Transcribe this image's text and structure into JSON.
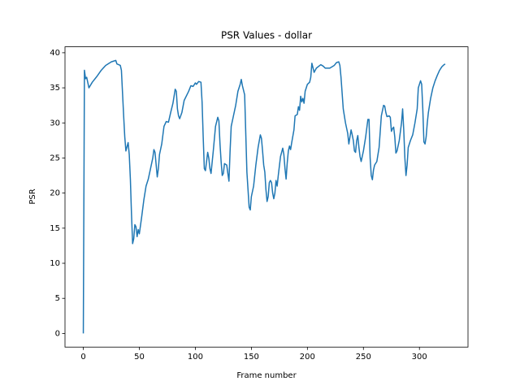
{
  "chart_data": {
    "type": "line",
    "title": "PSR Values - dollar",
    "x_label": "Frame number",
    "y_label": "PSR",
    "color": "#1f77b4",
    "x": [
      0,
      1,
      2,
      3,
      5,
      8,
      12,
      16,
      20,
      25,
      29,
      30,
      33,
      34,
      36,
      37,
      38,
      40,
      41,
      42,
      43,
      44,
      45,
      46,
      47,
      48,
      49,
      50,
      52,
      54,
      56,
      58,
      60,
      62,
      63,
      64,
      66,
      67,
      68,
      70,
      72,
      74,
      76,
      78,
      80,
      82,
      83,
      84,
      85,
      86,
      88,
      90,
      94,
      96,
      98,
      100,
      101,
      103,
      105,
      106,
      107,
      108,
      109,
      111,
      112,
      113,
      114,
      116,
      118,
      120,
      121,
      122,
      123,
      124,
      125,
      126,
      128,
      129,
      130,
      131,
      132,
      134,
      136,
      138,
      140,
      141,
      142,
      144,
      146,
      147,
      148,
      149,
      150,
      152,
      154,
      156,
      158,
      159,
      160,
      161,
      162,
      163,
      164,
      165,
      166,
      167,
      168,
      169,
      170,
      171,
      172,
      173,
      174,
      176,
      178,
      179,
      180,
      181,
      182,
      183,
      184,
      185,
      186,
      188,
      189,
      191,
      192,
      193,
      194,
      195,
      196,
      197,
      198,
      200,
      202,
      203,
      204,
      206,
      208,
      212,
      214,
      216,
      220,
      224,
      226,
      228,
      229,
      230,
      232,
      234,
      236,
      237,
      238,
      239,
      240,
      241,
      242,
      243,
      244,
      245,
      246,
      247,
      248,
      250,
      252,
      254,
      255,
      256,
      257,
      258,
      259,
      260,
      262,
      264,
      266,
      268,
      269,
      270,
      271,
      273,
      274,
      275,
      276,
      277,
      278,
      279,
      280,
      282,
      284,
      285,
      286,
      287,
      288,
      289,
      290,
      292,
      294,
      296,
      298,
      299,
      301,
      302,
      303,
      304,
      305,
      306,
      307,
      308,
      310,
      312,
      314,
      316,
      318,
      320,
      322,
      323
    ],
    "values": [
      0,
      37.5,
      36.3,
      36.5,
      35,
      35.8,
      36.6,
      37.5,
      38.2,
      38.7,
      38.9,
      38.4,
      38.2,
      37.5,
      31,
      28,
      26,
      27.2,
      25.5,
      22,
      17,
      12.8,
      13.5,
      15.5,
      15.2,
      13.8,
      14.8,
      14.2,
      16.5,
      19,
      21,
      22,
      23.5,
      25,
      26.2,
      25.8,
      22.3,
      23.5,
      25.5,
      27,
      29.5,
      30.2,
      30.1,
      31.5,
      32.8,
      34.8,
      34.5,
      32,
      31,
      30.6,
      31.5,
      33.2,
      34.5,
      35.3,
      35.2,
      35.7,
      35.5,
      35.9,
      35.8,
      33,
      28,
      23.5,
      23.2,
      25.8,
      25,
      23.5,
      22.8,
      26,
      29.5,
      30.8,
      30.3,
      27,
      24.5,
      22.5,
      22.8,
      24.2,
      24,
      22.8,
      21.7,
      26,
      29.5,
      31,
      32.5,
      34.5,
      35.5,
      36.2,
      35.3,
      34,
      23,
      20.5,
      18,
      17.6,
      19.5,
      21,
      24,
      26.5,
      28.3,
      27.8,
      26,
      24,
      23,
      20.5,
      18.8,
      19.5,
      21.5,
      21.8,
      21.5,
      20,
      19.2,
      20,
      21.8,
      21,
      22.5,
      25.2,
      26.4,
      25.5,
      23.5,
      22,
      24.3,
      26,
      26.7,
      26.2,
      27.2,
      29,
      31,
      31.2,
      32.3,
      31.8,
      33.8,
      33,
      33.5,
      32.8,
      34.5,
      35.5,
      35.8,
      36.5,
      38.5,
      37.2,
      37.8,
      38.3,
      38.1,
      37.8,
      37.8,
      38.2,
      38.6,
      38.7,
      38.2,
      36.5,
      32,
      30,
      28.5,
      27,
      28,
      29,
      28.3,
      27.5,
      26,
      25.8,
      27.5,
      28.2,
      26.5,
      25.2,
      24.5,
      26,
      28,
      30.5,
      30.5,
      25,
      22.5,
      21.9,
      23.3,
      24,
      24.5,
      26.5,
      31,
      32.5,
      32.4,
      31.5,
      30.9,
      31,
      30.8,
      28.8,
      29.2,
      29.4,
      28,
      25.7,
      26,
      27.5,
      30,
      32,
      29,
      25,
      22.5,
      24,
      26.5,
      27.5,
      28.3,
      30,
      32,
      35,
      36,
      35.5,
      32,
      27.3,
      27,
      28,
      30,
      31.5,
      33.5,
      35,
      36,
      36.8,
      37.5,
      38,
      38.3,
      38.4
    ],
    "xlim": [
      -16.35,
      343.35
    ],
    "xticks": [
      0,
      50,
      100,
      150,
      200,
      250,
      300
    ],
    "ylim": [
      -1.945,
      40.845
    ],
    "yticks": [
      0,
      5,
      10,
      15,
      20,
      25,
      30,
      35,
      40
    ]
  }
}
